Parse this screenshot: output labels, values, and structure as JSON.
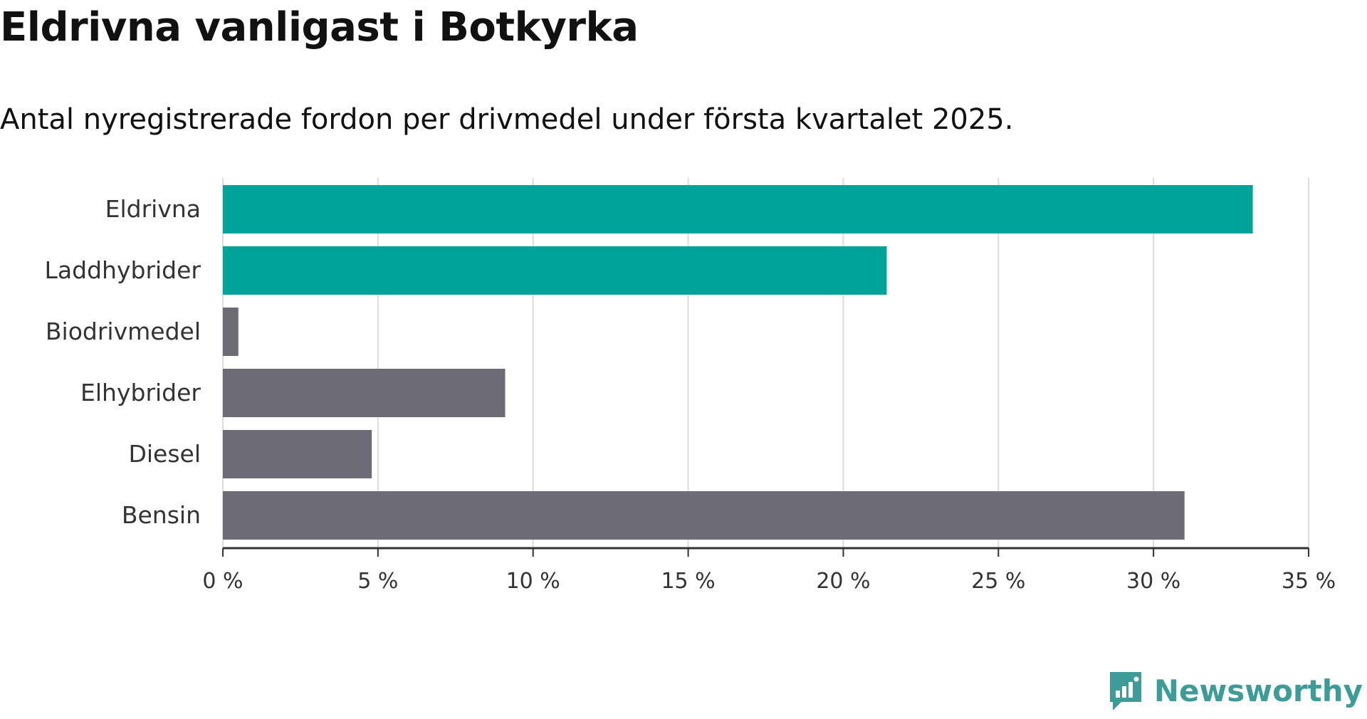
{
  "title": "Eldrivna vanligast i Botkyrka",
  "subtitle": "Antal nyregistrerade fordon per drivmedel under första kvartalet 2025.",
  "brand": {
    "name": "Newsworthy",
    "icon": "newsworthy-logo-icon",
    "color": "#3d9c98"
  },
  "chart_data": {
    "type": "bar",
    "orientation": "horizontal",
    "categories": [
      "Eldrivna",
      "Laddhybrider",
      "Biodrivmedel",
      "Elhybrider",
      "Diesel",
      "Bensin"
    ],
    "values": [
      33.2,
      21.4,
      0.5,
      9.1,
      4.8,
      31.0
    ],
    "colors": [
      "#00a39a",
      "#00a39a",
      "#6d6c75",
      "#6d6c75",
      "#6d6c75",
      "#6d6c75"
    ],
    "xlim": [
      0,
      35
    ],
    "x_ticks": [
      0,
      5,
      10,
      15,
      20,
      25,
      30,
      35
    ],
    "x_tick_labels": [
      "0 %",
      "5 %",
      "10 %",
      "15 %",
      "20 %",
      "25 %",
      "30 %",
      "35 %"
    ],
    "grid": true,
    "xlabel": "",
    "ylabel": ""
  }
}
